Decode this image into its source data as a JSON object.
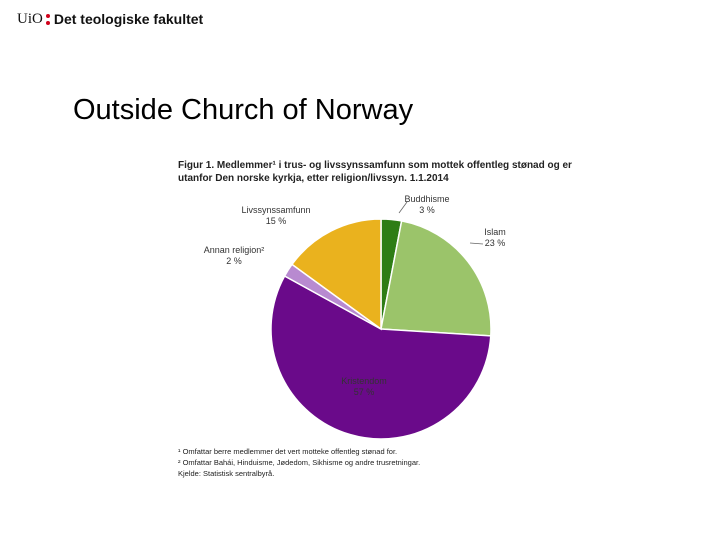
{
  "header": {
    "logo_text": "UiO",
    "faculty": "Det teologiske fakultet"
  },
  "slide_title": "Outside Church of Norway",
  "chart_data": {
    "type": "pie",
    "title_lines": [
      "Figur 1. Medlemmer¹ i trus- og livssynssamfunn som mottek offentleg stønad og er",
      "utanfor Den norske kyrkja, etter religion/livssyn. 1.1.2014"
    ],
    "slices": [
      {
        "name": "Buddhisme",
        "value": 3,
        "label": "3 %",
        "color": "#2e7d15"
      },
      {
        "name": "Islam",
        "value": 23,
        "label": "23 %",
        "color": "#9bc46a"
      },
      {
        "name": "Kristendom",
        "value": 57,
        "label": "57 %",
        "color": "#6a0a8a"
      },
      {
        "name": "Annan religion²",
        "value": 2,
        "label": "2 %",
        "color": "#b88ad0"
      },
      {
        "name": "Livssynssamfunn",
        "value": 15,
        "label": "15 %",
        "color": "#eab21e"
      }
    ],
    "footnotes": [
      "¹ Omfattar berre medlemmer det vert motteke offentleg stønad for.",
      "² Omfattar Bahái, Hinduisme, Jødedom, Sikhisme og andre trusretningar.",
      "Kjelde: Statistisk sentralbyrå."
    ]
  }
}
